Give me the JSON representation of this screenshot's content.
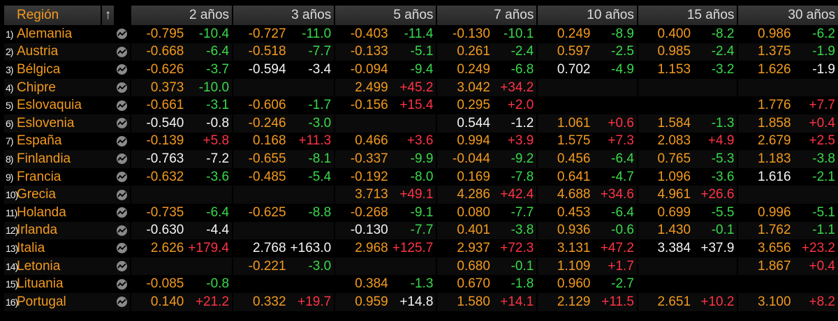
{
  "header": {
    "region": "Región",
    "sort_arrow": "↑",
    "terms": [
      "2 años",
      "3 años",
      "5 años",
      "7 años",
      "10 años",
      "15 años",
      "30 años"
    ]
  },
  "colors": {
    "orange": "#f39a1e",
    "green": "#38d94a",
    "red": "#ff3344",
    "white": "#f4f4f4",
    "background": "#000000"
  },
  "icons": {
    "row_chart": "chart-icon"
  },
  "rows": [
    {
      "num": "1)",
      "name": "Alemania",
      "cells": [
        {
          "y": "-0.795",
          "yc": "orange",
          "c": "-10.4",
          "cc": "green"
        },
        {
          "y": "-0.727",
          "yc": "orange",
          "c": "-11.0",
          "cc": "green"
        },
        {
          "y": "-0.403",
          "yc": "orange",
          "c": "-11.4",
          "cc": "green"
        },
        {
          "y": "-0.130",
          "yc": "orange",
          "c": "-10.1",
          "cc": "green"
        },
        {
          "y": "0.249",
          "yc": "orange",
          "c": "-8.9",
          "cc": "green"
        },
        {
          "y": "0.400",
          "yc": "orange",
          "c": "-8.2",
          "cc": "green"
        },
        {
          "y": "0.986",
          "yc": "orange",
          "c": "-6.2",
          "cc": "green"
        }
      ]
    },
    {
      "num": "2)",
      "name": "Austria",
      "cells": [
        {
          "y": "-0.668",
          "yc": "orange",
          "c": "-6.4",
          "cc": "green"
        },
        {
          "y": "-0.518",
          "yc": "orange",
          "c": "-7.7",
          "cc": "green"
        },
        {
          "y": "-0.133",
          "yc": "orange",
          "c": "-5.1",
          "cc": "green"
        },
        {
          "y": "0.261",
          "yc": "orange",
          "c": "-2.4",
          "cc": "green"
        },
        {
          "y": "0.597",
          "yc": "orange",
          "c": "-2.5",
          "cc": "green"
        },
        {
          "y": "0.985",
          "yc": "orange",
          "c": "-2.4",
          "cc": "green"
        },
        {
          "y": "1.375",
          "yc": "orange",
          "c": "-1.9",
          "cc": "green"
        }
      ]
    },
    {
      "num": "3)",
      "name": "Bélgica",
      "cells": [
        {
          "y": "-0.626",
          "yc": "orange",
          "c": "-3.7",
          "cc": "green"
        },
        {
          "y": "-0.594",
          "yc": "white",
          "c": "-3.4",
          "cc": "white"
        },
        {
          "y": "-0.094",
          "yc": "orange",
          "c": "-9.4",
          "cc": "green"
        },
        {
          "y": "0.249",
          "yc": "orange",
          "c": "-6.8",
          "cc": "green"
        },
        {
          "y": "0.702",
          "yc": "white",
          "c": "-4.9",
          "cc": "green"
        },
        {
          "y": "1.153",
          "yc": "orange",
          "c": "-3.2",
          "cc": "green"
        },
        {
          "y": "1.626",
          "yc": "orange",
          "c": "-1.9",
          "cc": "white"
        }
      ]
    },
    {
      "num": "4)",
      "name": "Chipre",
      "cells": [
        {
          "y": "0.373",
          "yc": "orange",
          "c": "-10.0",
          "cc": "green"
        },
        {
          "y": "",
          "yc": "orange",
          "c": "",
          "cc": "green"
        },
        {
          "y": "2.499",
          "yc": "orange",
          "c": "+45.2",
          "cc": "red"
        },
        {
          "y": "3.042",
          "yc": "orange",
          "c": "+34.2",
          "cc": "red"
        },
        {
          "y": "",
          "yc": "orange",
          "c": "",
          "cc": "green"
        },
        {
          "y": "",
          "yc": "orange",
          "c": "",
          "cc": "green"
        },
        {
          "y": "",
          "yc": "orange",
          "c": "",
          "cc": "green"
        }
      ]
    },
    {
      "num": "5)",
      "name": "Eslovaquia",
      "cells": [
        {
          "y": "-0.661",
          "yc": "orange",
          "c": "-3.1",
          "cc": "green"
        },
        {
          "y": "-0.606",
          "yc": "orange",
          "c": "-1.7",
          "cc": "green"
        },
        {
          "y": "-0.156",
          "yc": "orange",
          "c": "+15.4",
          "cc": "red"
        },
        {
          "y": "0.295",
          "yc": "orange",
          "c": "+2.0",
          "cc": "red"
        },
        {
          "y": "",
          "yc": "orange",
          "c": "",
          "cc": "green"
        },
        {
          "y": "",
          "yc": "orange",
          "c": "",
          "cc": "green"
        },
        {
          "y": "1.776",
          "yc": "orange",
          "c": "+7.7",
          "cc": "red"
        }
      ]
    },
    {
      "num": "6)",
      "name": "Eslovenia",
      "cells": [
        {
          "y": "-0.540",
          "yc": "white",
          "c": "-0.8",
          "cc": "white"
        },
        {
          "y": "-0.246",
          "yc": "orange",
          "c": "-3.0",
          "cc": "green"
        },
        {
          "y": "",
          "yc": "orange",
          "c": "",
          "cc": "green"
        },
        {
          "y": "0.544",
          "yc": "white",
          "c": "-1.2",
          "cc": "white"
        },
        {
          "y": "1.061",
          "yc": "orange",
          "c": "+0.6",
          "cc": "red"
        },
        {
          "y": "1.584",
          "yc": "orange",
          "c": "-1.3",
          "cc": "green"
        },
        {
          "y": "1.858",
          "yc": "orange",
          "c": "+0.4",
          "cc": "red"
        }
      ]
    },
    {
      "num": "7)",
      "name": "España",
      "cells": [
        {
          "y": "-0.139",
          "yc": "orange",
          "c": "+5.8",
          "cc": "red"
        },
        {
          "y": "0.168",
          "yc": "orange",
          "c": "+11.3",
          "cc": "red"
        },
        {
          "y": "0.466",
          "yc": "orange",
          "c": "+3.6",
          "cc": "red"
        },
        {
          "y": "0.994",
          "yc": "orange",
          "c": "+3.9",
          "cc": "red"
        },
        {
          "y": "1.575",
          "yc": "orange",
          "c": "+7.3",
          "cc": "red"
        },
        {
          "y": "2.083",
          "yc": "orange",
          "c": "+4.9",
          "cc": "red"
        },
        {
          "y": "2.679",
          "yc": "orange",
          "c": "+2.5",
          "cc": "red"
        }
      ]
    },
    {
      "num": "8)",
      "name": "Finlandia",
      "cells": [
        {
          "y": "-0.763",
          "yc": "white",
          "c": "-7.2",
          "cc": "white"
        },
        {
          "y": "-0.655",
          "yc": "orange",
          "c": "-8.1",
          "cc": "green"
        },
        {
          "y": "-0.337",
          "yc": "orange",
          "c": "-9.9",
          "cc": "green"
        },
        {
          "y": "-0.044",
          "yc": "orange",
          "c": "-9.2",
          "cc": "green"
        },
        {
          "y": "0.456",
          "yc": "orange",
          "c": "-6.4",
          "cc": "green"
        },
        {
          "y": "0.765",
          "yc": "orange",
          "c": "-5.3",
          "cc": "green"
        },
        {
          "y": "1.183",
          "yc": "orange",
          "c": "-3.8",
          "cc": "green"
        }
      ]
    },
    {
      "num": "9)",
      "name": "Francia",
      "cells": [
        {
          "y": "-0.632",
          "yc": "orange",
          "c": "-3.6",
          "cc": "green"
        },
        {
          "y": "-0.485",
          "yc": "orange",
          "c": "-5.4",
          "cc": "green"
        },
        {
          "y": "-0.192",
          "yc": "orange",
          "c": "-8.0",
          "cc": "green"
        },
        {
          "y": "0.169",
          "yc": "orange",
          "c": "-7.8",
          "cc": "green"
        },
        {
          "y": "0.641",
          "yc": "orange",
          "c": "-4.7",
          "cc": "green"
        },
        {
          "y": "1.096",
          "yc": "orange",
          "c": "-3.6",
          "cc": "green"
        },
        {
          "y": "1.616",
          "yc": "white",
          "c": "-2.1",
          "cc": "green"
        }
      ]
    },
    {
      "num": "10)",
      "name": "Grecia",
      "cells": [
        {
          "y": "",
          "yc": "orange",
          "c": "",
          "cc": "green"
        },
        {
          "y": "",
          "yc": "orange",
          "c": "",
          "cc": "green"
        },
        {
          "y": "3.713",
          "yc": "orange",
          "c": "+49.1",
          "cc": "red"
        },
        {
          "y": "4.286",
          "yc": "orange",
          "c": "+42.4",
          "cc": "red"
        },
        {
          "y": "4.688",
          "yc": "orange",
          "c": "+34.6",
          "cc": "red"
        },
        {
          "y": "4.961",
          "yc": "orange",
          "c": "+26.6",
          "cc": "red"
        },
        {
          "y": "",
          "yc": "orange",
          "c": "",
          "cc": "green"
        }
      ]
    },
    {
      "num": "11)",
      "name": "Holanda",
      "cells": [
        {
          "y": "-0.735",
          "yc": "orange",
          "c": "-6.4",
          "cc": "green"
        },
        {
          "y": "-0.625",
          "yc": "orange",
          "c": "-8.8",
          "cc": "green"
        },
        {
          "y": "-0.268",
          "yc": "orange",
          "c": "-9.1",
          "cc": "green"
        },
        {
          "y": "0.080",
          "yc": "orange",
          "c": "-7.7",
          "cc": "green"
        },
        {
          "y": "0.453",
          "yc": "orange",
          "c": "-6.4",
          "cc": "green"
        },
        {
          "y": "0.699",
          "yc": "orange",
          "c": "-5.5",
          "cc": "green"
        },
        {
          "y": "0.996",
          "yc": "orange",
          "c": "-5.1",
          "cc": "green"
        }
      ]
    },
    {
      "num": "12)",
      "name": "Irlanda",
      "cells": [
        {
          "y": "-0.630",
          "yc": "white",
          "c": "-4.4",
          "cc": "white"
        },
        {
          "y": "",
          "yc": "orange",
          "c": "",
          "cc": "green"
        },
        {
          "y": "-0.130",
          "yc": "white",
          "c": "-7.7",
          "cc": "green"
        },
        {
          "y": "0.401",
          "yc": "orange",
          "c": "-3.8",
          "cc": "green"
        },
        {
          "y": "0.936",
          "yc": "orange",
          "c": "-0.6",
          "cc": "green"
        },
        {
          "y": "1.430",
          "yc": "orange",
          "c": "-0.1",
          "cc": "green"
        },
        {
          "y": "1.762",
          "yc": "orange",
          "c": "-1.1",
          "cc": "green"
        }
      ]
    },
    {
      "num": "13)",
      "name": "Italia",
      "cells": [
        {
          "y": "2.626",
          "yc": "orange",
          "c": "+179.4",
          "cc": "red"
        },
        {
          "y": "2.768",
          "yc": "white",
          "c": "+163.0",
          "cc": "white"
        },
        {
          "y": "2.968",
          "yc": "orange",
          "c": "+125.7",
          "cc": "red"
        },
        {
          "y": "2.937",
          "yc": "orange",
          "c": "+72.3",
          "cc": "red"
        },
        {
          "y": "3.131",
          "yc": "orange",
          "c": "+47.2",
          "cc": "red"
        },
        {
          "y": "3.384",
          "yc": "white",
          "c": "+37.9",
          "cc": "white"
        },
        {
          "y": "3.656",
          "yc": "orange",
          "c": "+23.2",
          "cc": "red"
        }
      ]
    },
    {
      "num": "14)",
      "name": "Letonia",
      "cells": [
        {
          "y": "",
          "yc": "orange",
          "c": "",
          "cc": "green"
        },
        {
          "y": "-0.221",
          "yc": "orange",
          "c": "-3.0",
          "cc": "green"
        },
        {
          "y": "",
          "yc": "orange",
          "c": "",
          "cc": "green"
        },
        {
          "y": "0.680",
          "yc": "orange",
          "c": "-0.1",
          "cc": "green"
        },
        {
          "y": "1.109",
          "yc": "orange",
          "c": "+1.7",
          "cc": "red"
        },
        {
          "y": "",
          "yc": "orange",
          "c": "",
          "cc": "green"
        },
        {
          "y": "1.867",
          "yc": "orange",
          "c": "+0.4",
          "cc": "red"
        }
      ]
    },
    {
      "num": "15)",
      "name": "Lituania",
      "cells": [
        {
          "y": "-0.085",
          "yc": "orange",
          "c": "-0.8",
          "cc": "green"
        },
        {
          "y": "",
          "yc": "orange",
          "c": "",
          "cc": "green"
        },
        {
          "y": "0.384",
          "yc": "orange",
          "c": "-1.3",
          "cc": "green"
        },
        {
          "y": "0.670",
          "yc": "orange",
          "c": "-1.8",
          "cc": "green"
        },
        {
          "y": "0.960",
          "yc": "orange",
          "c": "-2.7",
          "cc": "green"
        },
        {
          "y": "",
          "yc": "orange",
          "c": "",
          "cc": "green"
        },
        {
          "y": "",
          "yc": "orange",
          "c": "",
          "cc": "green"
        }
      ]
    },
    {
      "num": "16)",
      "name": "Portugal",
      "cells": [
        {
          "y": "0.140",
          "yc": "orange",
          "c": "+21.2",
          "cc": "red"
        },
        {
          "y": "0.332",
          "yc": "orange",
          "c": "+19.7",
          "cc": "red"
        },
        {
          "y": "0.959",
          "yc": "orange",
          "c": "+14.8",
          "cc": "white"
        },
        {
          "y": "1.580",
          "yc": "orange",
          "c": "+14.1",
          "cc": "red"
        },
        {
          "y": "2.129",
          "yc": "orange",
          "c": "+11.5",
          "cc": "red"
        },
        {
          "y": "2.651",
          "yc": "orange",
          "c": "+10.2",
          "cc": "red"
        },
        {
          "y": "3.100",
          "yc": "orange",
          "c": "+8.2",
          "cc": "red"
        }
      ]
    }
  ]
}
